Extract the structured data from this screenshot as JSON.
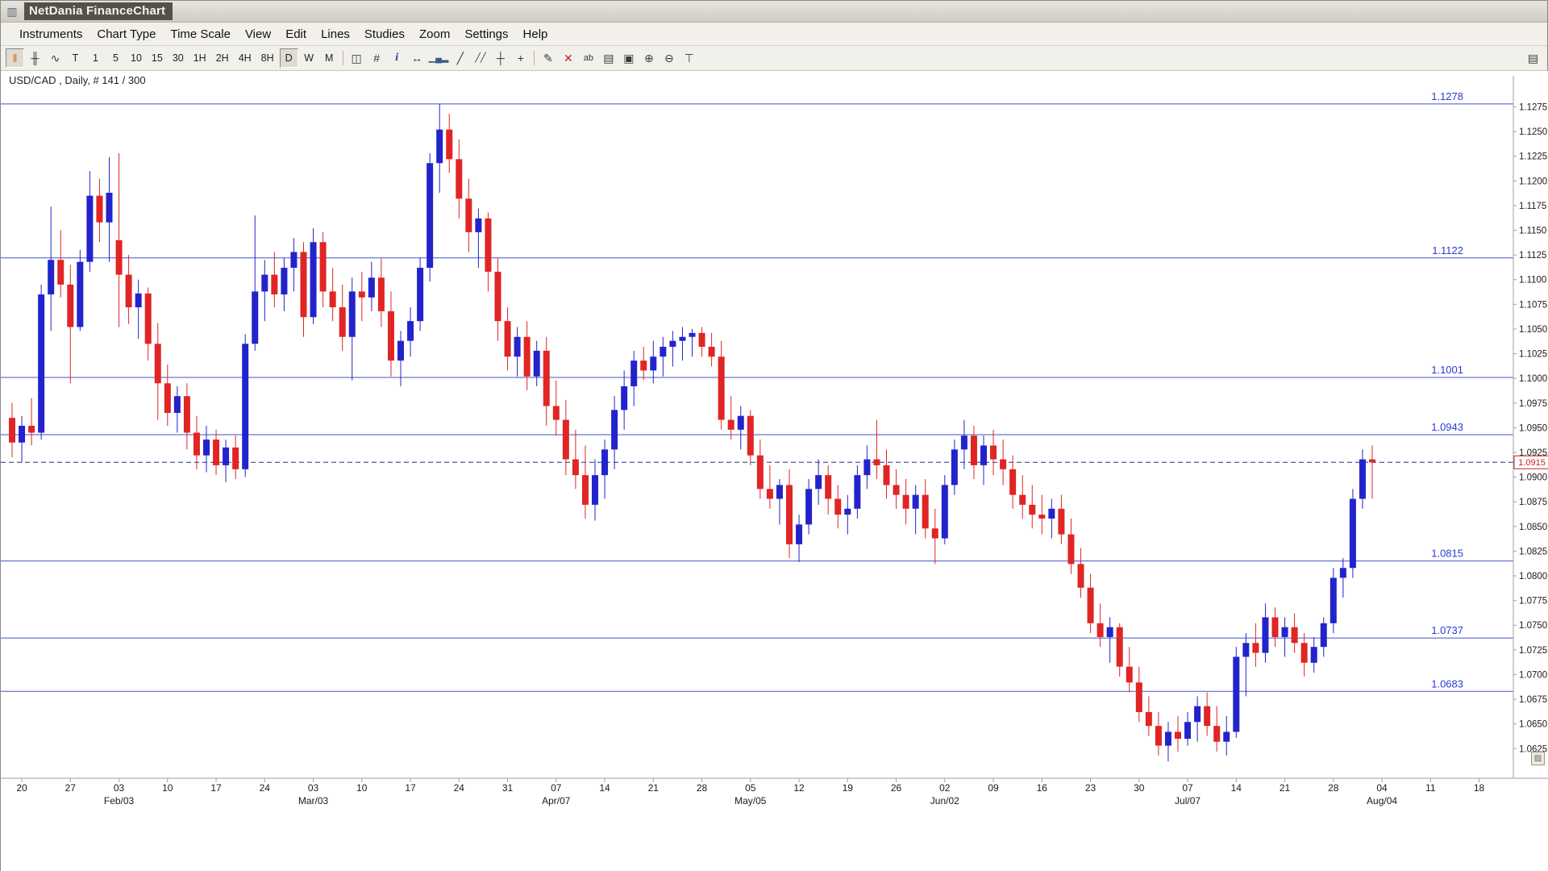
{
  "window": {
    "title": "NetDania FinanceChart"
  },
  "menu": {
    "items": [
      "Instruments",
      "Chart Type",
      "Time Scale",
      "View",
      "Edit",
      "Lines",
      "Studies",
      "Zoom",
      "Settings",
      "Help"
    ]
  },
  "toolbar": {
    "buttons": [
      {
        "name": "tick-bars-icon",
        "glyph": "‖",
        "color": "#d2681e",
        "active": true
      },
      {
        "name": "candlestick-style-icon",
        "glyph": "╫",
        "color": "#3a3a3a"
      },
      {
        "name": "line-style-icon",
        "glyph": "∿",
        "color": "#3a3a3a"
      },
      {
        "name": "timeframe-tick",
        "label": "T"
      },
      {
        "name": "timeframe-1min",
        "label": "1"
      },
      {
        "name": "timeframe-5min",
        "label": "5"
      },
      {
        "name": "timeframe-10min",
        "label": "10"
      },
      {
        "name": "timeframe-15min",
        "label": "15"
      },
      {
        "name": "timeframe-30min",
        "label": "30"
      },
      {
        "name": "timeframe-1h",
        "label": "1H"
      },
      {
        "name": "timeframe-2h",
        "label": "2H"
      },
      {
        "name": "timeframe-4h",
        "label": "4H"
      },
      {
        "name": "timeframe-8h",
        "label": "8H"
      },
      {
        "name": "timeframe-daily",
        "label": "D",
        "active": true
      },
      {
        "name": "timeframe-weekly",
        "label": "W"
      },
      {
        "name": "timeframe-monthly",
        "label": "M"
      },
      {
        "sep": true
      },
      {
        "name": "split-view-icon",
        "glyph": "◫",
        "color": "#3a3a3a"
      },
      {
        "name": "grid-icon",
        "glyph": "#",
        "color": "#3a3a3a"
      },
      {
        "name": "info-icon",
        "glyph": "i",
        "color": "#20409a",
        "italic": true
      },
      {
        "name": "expand-horizontal-icon",
        "glyph": "↔",
        "color": "#3a3a3a"
      },
      {
        "name": "volume-icon",
        "glyph": "▁▄▂",
        "color": "#3a5a8a",
        "small": true
      },
      {
        "name": "trendline-icon",
        "glyph": "╱",
        "color": "#3a3a3a"
      },
      {
        "name": "trend-channel-icon",
        "glyph": "╱╱",
        "color": "#3a3a3a",
        "small": true
      },
      {
        "name": "horizontal-line-icon",
        "glyph": "┼",
        "color": "#3a3a3a"
      },
      {
        "name": "crosshair-icon",
        "glyph": "+",
        "color": "#3a3a3a"
      },
      {
        "sep": true
      },
      {
        "name": "freehand-draw-icon",
        "glyph": "✎",
        "color": "#3a3a3a"
      },
      {
        "name": "delete-drawings-icon",
        "glyph": "✕",
        "color": "#cc2020"
      },
      {
        "name": "text-note-icon",
        "glyph": "ab",
        "color": "#3a3a3a",
        "small": true
      },
      {
        "name": "print-icon",
        "glyph": "▤",
        "color": "#3a3a3a"
      },
      {
        "name": "print-preview-icon",
        "glyph": "▣",
        "color": "#3a3a3a"
      },
      {
        "name": "zoom-in-icon",
        "glyph": "⊕",
        "color": "#3a3a3a"
      },
      {
        "name": "zoom-out-icon",
        "glyph": "⊖",
        "color": "#3a3a3a"
      },
      {
        "name": "axis-scale-icon",
        "glyph": "⊤",
        "color": "#3a3a3a"
      }
    ],
    "right_button": {
      "name": "properties-panel-icon",
      "glyph": "▤",
      "color": "#3a3a3a"
    }
  },
  "chart": {
    "instrument_label": "USD/CAD , Daily, # 141 / 300",
    "current_price": "1.0915",
    "levels": [
      "1.1278",
      "1.1122",
      "1.1001",
      "1.0943",
      "1.0815",
      "1.0737",
      "1.0683"
    ],
    "y_axis": {
      "min": 1.0625,
      "max": 1.1275,
      "step": 0.0025,
      "decimals": 4
    },
    "colors": {
      "up": "#2323cc",
      "down": "#e02525",
      "level_line": "#4253cd",
      "level_text": "#2b3bd6",
      "dashed_line": "#27337f",
      "current_price": "#cc2222",
      "axis_text": "#1a1a1a",
      "axis_line": "#9aa0ab"
    },
    "corner_button_glyph": "▨"
  },
  "chart_data": {
    "type": "candlestick",
    "symbol": "USD/CAD",
    "interval": "Daily",
    "bars_label": "# 141 / 300",
    "ylim": [
      1.0595,
      1.1295
    ],
    "x_ticks": [
      [
        "20",
        1
      ],
      [
        "27",
        6
      ],
      [
        "03",
        11
      ],
      [
        "10",
        16
      ],
      [
        "17",
        21
      ],
      [
        "24",
        26
      ],
      [
        "03",
        31
      ],
      [
        "10",
        36
      ],
      [
        "17",
        41
      ],
      [
        "24",
        46
      ],
      [
        "31",
        51
      ],
      [
        "07",
        56
      ],
      [
        "14",
        61
      ],
      [
        "21",
        66
      ],
      [
        "28",
        71
      ],
      [
        "05",
        76
      ],
      [
        "12",
        81
      ],
      [
        "19",
        86
      ],
      [
        "26",
        91
      ],
      [
        "02",
        96
      ],
      [
        "09",
        101
      ],
      [
        "16",
        106
      ],
      [
        "23",
        111
      ],
      [
        "30",
        116
      ],
      [
        "07",
        121
      ],
      [
        "14",
        126
      ],
      [
        "21",
        131
      ],
      [
        "28",
        136
      ],
      [
        "04",
        141
      ],
      [
        "11",
        146
      ],
      [
        "18",
        151
      ]
    ],
    "x_months": [
      [
        "Feb/03",
        11
      ],
      [
        "Mar/03",
        31
      ],
      [
        "Apr/07",
        56
      ],
      [
        "May/05",
        76
      ],
      [
        "Jun/02",
        96
      ],
      [
        "Jul/07",
        121
      ],
      [
        "Aug/04",
        141
      ]
    ],
    "candles": [
      [
        1.096,
        1.0975,
        1.092,
        1.0935
      ],
      [
        1.0935,
        1.0962,
        1.0915,
        1.0952
      ],
      [
        1.0952,
        1.098,
        1.0932,
        1.0945
      ],
      [
        1.0945,
        1.1095,
        1.0938,
        1.1085
      ],
      [
        1.1085,
        1.1174,
        1.1048,
        1.112
      ],
      [
        1.112,
        1.115,
        1.1082,
        1.1095
      ],
      [
        1.1095,
        1.1115,
        1.0995,
        1.1052
      ],
      [
        1.1052,
        1.113,
        1.1048,
        1.1118
      ],
      [
        1.1118,
        1.121,
        1.1108,
        1.1185
      ],
      [
        1.1185,
        1.1202,
        1.1138,
        1.1158
      ],
      [
        1.1158,
        1.1224,
        1.1118,
        1.1188
      ],
      [
        1.114,
        1.1228,
        1.1052,
        1.1105
      ],
      [
        1.1105,
        1.1125,
        1.1055,
        1.1072
      ],
      [
        1.1072,
        1.11,
        1.104,
        1.1086
      ],
      [
        1.1086,
        1.1092,
        1.1018,
        1.1035
      ],
      [
        1.1035,
        1.1056,
        1.0958,
        1.0995
      ],
      [
        1.0995,
        1.1014,
        1.0952,
        1.0965
      ],
      [
        1.0965,
        1.0992,
        1.0945,
        1.0982
      ],
      [
        1.0982,
        1.0995,
        1.0928,
        1.0945
      ],
      [
        1.0945,
        1.0962,
        1.0908,
        1.0922
      ],
      [
        1.0922,
        1.0952,
        1.0905,
        1.0938
      ],
      [
        1.0938,
        1.0948,
        1.0902,
        1.0912
      ],
      [
        1.0912,
        1.0938,
        1.0895,
        1.093
      ],
      [
        1.093,
        1.0942,
        1.0898,
        1.0908
      ],
      [
        1.0908,
        1.1045,
        1.09,
        1.1035
      ],
      [
        1.1035,
        1.1165,
        1.1028,
        1.1088
      ],
      [
        1.1088,
        1.112,
        1.1058,
        1.1105
      ],
      [
        1.1105,
        1.1128,
        1.1072,
        1.1085
      ],
      [
        1.1085,
        1.1122,
        1.1068,
        1.1112
      ],
      [
        1.1112,
        1.1142,
        1.1088,
        1.1128
      ],
      [
        1.1128,
        1.1138,
        1.1042,
        1.1062
      ],
      [
        1.1062,
        1.1152,
        1.1055,
        1.1138
      ],
      [
        1.1138,
        1.1148,
        1.1072,
        1.1088
      ],
      [
        1.1088,
        1.1112,
        1.1058,
        1.1072
      ],
      [
        1.1072,
        1.1095,
        1.1028,
        1.1042
      ],
      [
        1.1042,
        1.1102,
        1.0998,
        1.1088
      ],
      [
        1.1088,
        1.1108,
        1.1058,
        1.1082
      ],
      [
        1.1082,
        1.1118,
        1.1068,
        1.1102
      ],
      [
        1.1102,
        1.1122,
        1.1052,
        1.1068
      ],
      [
        1.1068,
        1.1088,
        1.1002,
        1.1018
      ],
      [
        1.1018,
        1.1048,
        1.0992,
        1.1038
      ],
      [
        1.1038,
        1.1072,
        1.1022,
        1.1058
      ],
      [
        1.1058,
        1.1122,
        1.1048,
        1.1112
      ],
      [
        1.1112,
        1.1228,
        1.1098,
        1.1218
      ],
      [
        1.1218,
        1.1278,
        1.1188,
        1.1252
      ],
      [
        1.1252,
        1.1268,
        1.1208,
        1.1222
      ],
      [
        1.1222,
        1.1242,
        1.1162,
        1.1182
      ],
      [
        1.1182,
        1.1202,
        1.1128,
        1.1148
      ],
      [
        1.1148,
        1.1172,
        1.1112,
        1.1162
      ],
      [
        1.1162,
        1.1168,
        1.1088,
        1.1108
      ],
      [
        1.1108,
        1.1122,
        1.1038,
        1.1058
      ],
      [
        1.1058,
        1.1072,
        1.1008,
        1.1022
      ],
      [
        1.1022,
        1.1052,
        1.1002,
        1.1042
      ],
      [
        1.1042,
        1.1058,
        1.0988,
        1.1002
      ],
      [
        1.1002,
        1.1038,
        1.0992,
        1.1028
      ],
      [
        1.1028,
        1.1042,
        1.0952,
        1.0972
      ],
      [
        1.0972,
        1.0998,
        1.0942,
        1.0958
      ],
      [
        1.0958,
        1.0978,
        1.0902,
        1.0918
      ],
      [
        1.0918,
        1.0948,
        1.0888,
        1.0902
      ],
      [
        1.0902,
        1.0932,
        1.0858,
        1.0872
      ],
      [
        1.0872,
        1.0918,
        1.0856,
        1.0902
      ],
      [
        1.0902,
        1.0938,
        1.0878,
        1.0928
      ],
      [
        1.0928,
        1.0982,
        1.0908,
        1.0968
      ],
      [
        1.0968,
        1.1008,
        1.0948,
        1.0992
      ],
      [
        1.0992,
        1.1028,
        1.0972,
        1.1018
      ],
      [
        1.1018,
        1.1032,
        1.0998,
        1.1008
      ],
      [
        1.1008,
        1.1038,
        1.0995,
        1.1022
      ],
      [
        1.1022,
        1.1042,
        1.1002,
        1.1032
      ],
      [
        1.1032,
        1.1048,
        1.1012,
        1.1038
      ],
      [
        1.1038,
        1.1052,
        1.1018,
        1.1042
      ],
      [
        1.1042,
        1.105,
        1.1022,
        1.1046
      ],
      [
        1.1046,
        1.1052,
        1.1022,
        1.1032
      ],
      [
        1.1032,
        1.1046,
        1.1012,
        1.1022
      ],
      [
        1.1022,
        1.1038,
        1.0948,
        1.0958
      ],
      [
        1.0958,
        1.0982,
        1.0938,
        1.0948
      ],
      [
        1.0948,
        1.0972,
        1.0928,
        1.0962
      ],
      [
        1.0962,
        1.0968,
        1.0912,
        1.0922
      ],
      [
        1.0922,
        1.0938,
        1.0878,
        1.0888
      ],
      [
        1.0888,
        1.0912,
        1.0868,
        1.0878
      ],
      [
        1.0878,
        1.0898,
        1.0852,
        1.0892
      ],
      [
        1.0892,
        1.0908,
        1.0818,
        1.0832
      ],
      [
        1.0832,
        1.0862,
        1.0814,
        1.0852
      ],
      [
        1.0852,
        1.0898,
        1.0842,
        1.0888
      ],
      [
        1.0888,
        1.0918,
        1.0872,
        1.0902
      ],
      [
        1.0902,
        1.0912,
        1.0862,
        1.0878
      ],
      [
        1.0878,
        1.0892,
        1.0848,
        1.0862
      ],
      [
        1.0862,
        1.0882,
        1.0842,
        1.0868
      ],
      [
        1.0868,
        1.0912,
        1.0858,
        1.0902
      ],
      [
        1.0902,
        1.0932,
        1.0888,
        1.0918
      ],
      [
        1.0918,
        1.0958,
        1.0898,
        1.0912
      ],
      [
        1.0912,
        1.0928,
        1.0878,
        1.0892
      ],
      [
        1.0892,
        1.0908,
        1.0868,
        1.0882
      ],
      [
        1.0882,
        1.0898,
        1.0852,
        1.0868
      ],
      [
        1.0868,
        1.0892,
        1.0842,
        1.0882
      ],
      [
        1.0882,
        1.0898,
        1.0838,
        1.0848
      ],
      [
        1.0848,
        1.0868,
        1.0812,
        1.0838
      ],
      [
        1.0838,
        1.0902,
        1.0832,
        1.0892
      ],
      [
        1.0892,
        1.0938,
        1.0882,
        1.0928
      ],
      [
        1.0928,
        1.0958,
        1.0908,
        1.0942
      ],
      [
        1.0942,
        1.0952,
        1.0898,
        1.0912
      ],
      [
        1.0912,
        1.0942,
        1.0892,
        1.0932
      ],
      [
        1.0932,
        1.0948,
        1.0902,
        1.0918
      ],
      [
        1.0918,
        1.0938,
        1.0892,
        1.0908
      ],
      [
        1.0908,
        1.0922,
        1.0868,
        1.0882
      ],
      [
        1.0882,
        1.0902,
        1.0858,
        1.0872
      ],
      [
        1.0872,
        1.0892,
        1.0848,
        1.0862
      ],
      [
        1.0862,
        1.0882,
        1.0842,
        1.0858
      ],
      [
        1.0858,
        1.0878,
        1.0838,
        1.0868
      ],
      [
        1.0868,
        1.0882,
        1.0832,
        1.0842
      ],
      [
        1.0842,
        1.0858,
        1.0802,
        1.0812
      ],
      [
        1.0812,
        1.0828,
        1.0778,
        1.0788
      ],
      [
        1.0788,
        1.0802,
        1.0742,
        1.0752
      ],
      [
        1.0752,
        1.0772,
        1.0728,
        1.0738
      ],
      [
        1.0738,
        1.0758,
        1.0712,
        1.0748
      ],
      [
        1.0748,
        1.0752,
        1.0698,
        1.0708
      ],
      [
        1.0708,
        1.0728,
        1.0682,
        1.0692
      ],
      [
        1.0692,
        1.0708,
        1.0652,
        1.0662
      ],
      [
        1.0662,
        1.0678,
        1.0638,
        1.0648
      ],
      [
        1.0648,
        1.0662,
        1.0618,
        1.0628
      ],
      [
        1.0628,
        1.0652,
        1.0612,
        1.0642
      ],
      [
        1.0642,
        1.0658,
        1.0622,
        1.0635
      ],
      [
        1.0635,
        1.0662,
        1.0628,
        1.0652
      ],
      [
        1.0652,
        1.0678,
        1.0632,
        1.0668
      ],
      [
        1.0668,
        1.0682,
        1.0638,
        1.0648
      ],
      [
        1.0648,
        1.0668,
        1.0622,
        1.0632
      ],
      [
        1.0632,
        1.0658,
        1.0618,
        1.0642
      ],
      [
        1.0642,
        1.0728,
        1.0636,
        1.0718
      ],
      [
        1.0718,
        1.0742,
        1.0678,
        1.0732
      ],
      [
        1.0732,
        1.0752,
        1.0708,
        1.0722
      ],
      [
        1.0722,
        1.0772,
        1.0712,
        1.0758
      ],
      [
        1.0758,
        1.0768,
        1.0728,
        1.0738
      ],
      [
        1.0738,
        1.0758,
        1.0718,
        1.0748
      ],
      [
        1.0748,
        1.0762,
        1.0722,
        1.0732
      ],
      [
        1.0732,
        1.0742,
        1.0698,
        1.0712
      ],
      [
        1.0712,
        1.0738,
        1.0702,
        1.0728
      ],
      [
        1.0728,
        1.0758,
        1.0718,
        1.0752
      ],
      [
        1.0752,
        1.0808,
        1.0742,
        1.0798
      ],
      [
        1.0798,
        1.0818,
        1.0778,
        1.0808
      ],
      [
        1.0808,
        1.0888,
        1.0798,
        1.0878
      ],
      [
        1.0878,
        1.0928,
        1.0868,
        1.0918
      ],
      [
        1.0918,
        1.0932,
        1.0878,
        1.0915
      ]
    ],
    "horizontal_levels": [
      1.1278,
      1.1122,
      1.1001,
      1.0943,
      1.0815,
      1.0737,
      1.0683
    ],
    "current_price": 1.0915,
    "legend_position": "none",
    "grid": false
  }
}
